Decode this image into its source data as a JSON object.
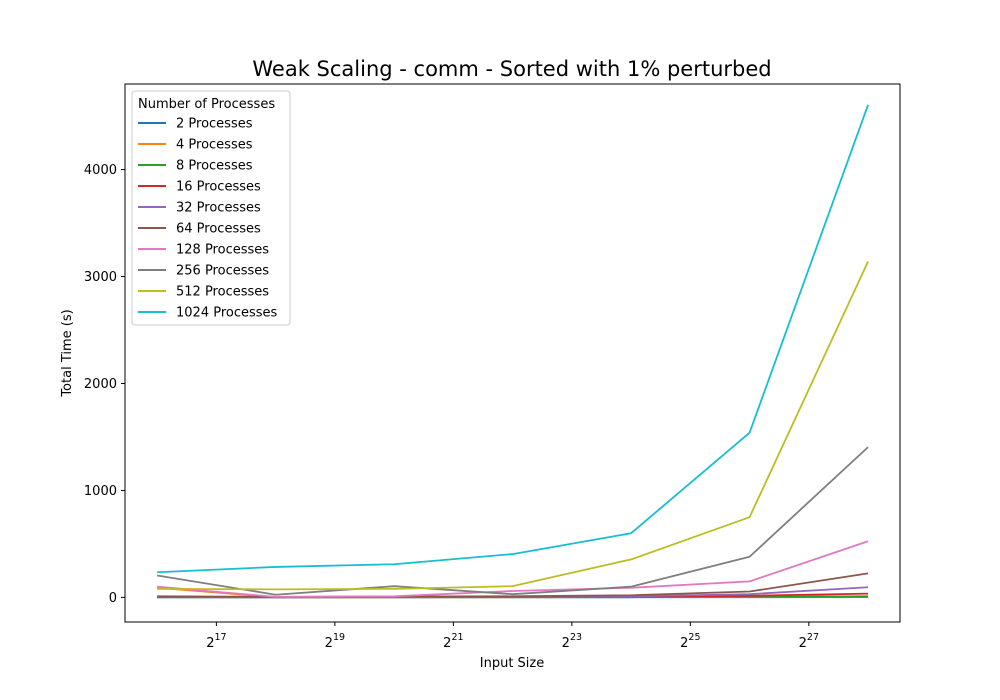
{
  "chart_data": {
    "type": "line",
    "title": "Weak Scaling - comm - Sorted with 1% perturbed",
    "xlabel": "Input Size",
    "ylabel": "Total Time (s)",
    "x_scale": "log2",
    "x": [
      65536,
      262144,
      1048576,
      4194304,
      16777216,
      67108864,
      268435456
    ],
    "xlim": [
      45000,
      390000000
    ],
    "x_ticks": [
      {
        "base": "2",
        "exp": "17",
        "value": 131072
      },
      {
        "base": "2",
        "exp": "19",
        "value": 524288
      },
      {
        "base": "2",
        "exp": "21",
        "value": 2097152
      },
      {
        "base": "2",
        "exp": "23",
        "value": 8388608
      },
      {
        "base": "2",
        "exp": "25",
        "value": 33554432
      },
      {
        "base": "2",
        "exp": "27",
        "value": 134217728
      }
    ],
    "ylim": [
      -230,
      4800
    ],
    "y_ticks": [
      0,
      1000,
      2000,
      3000,
      4000
    ],
    "grid": false,
    "legend_title": "Number of Processes",
    "legend_position": "top-left",
    "series": [
      {
        "name": "2 Processes",
        "color": "#1f77b4",
        "values": [
          1,
          1,
          1,
          1,
          1,
          2,
          3
        ]
      },
      {
        "name": "4 Processes",
        "color": "#ff7f0e",
        "values": [
          90,
          2,
          2,
          2,
          3,
          4,
          6
        ]
      },
      {
        "name": "8 Processes",
        "color": "#2ca02c",
        "values": [
          2,
          2,
          2,
          3,
          4,
          6,
          10
        ]
      },
      {
        "name": "16 Processes",
        "color": "#d62728",
        "values": [
          3,
          2,
          3,
          4,
          6,
          15,
          35
        ]
      },
      {
        "name": "32 Processes",
        "color": "#9467bd",
        "values": [
          5,
          2,
          3,
          5,
          10,
          30,
          95
        ]
      },
      {
        "name": "64 Processes",
        "color": "#8c564b",
        "values": [
          10,
          5,
          8,
          10,
          20,
          55,
          225
        ]
      },
      {
        "name": "128 Processes",
        "color": "#e377c2",
        "values": [
          100,
          5,
          10,
          60,
          90,
          150,
          525
        ]
      },
      {
        "name": "256 Processes",
        "color": "#7f7f7f",
        "values": [
          205,
          25,
          105,
          30,
          100,
          380,
          1405
        ]
      },
      {
        "name": "512 Processes",
        "color": "#bcbd22",
        "values": [
          80,
          75,
          80,
          105,
          355,
          750,
          3140
        ]
      },
      {
        "name": "1024 Processes",
        "color": "#17becf",
        "values": [
          235,
          285,
          310,
          405,
          600,
          1540,
          4605
        ]
      }
    ]
  }
}
